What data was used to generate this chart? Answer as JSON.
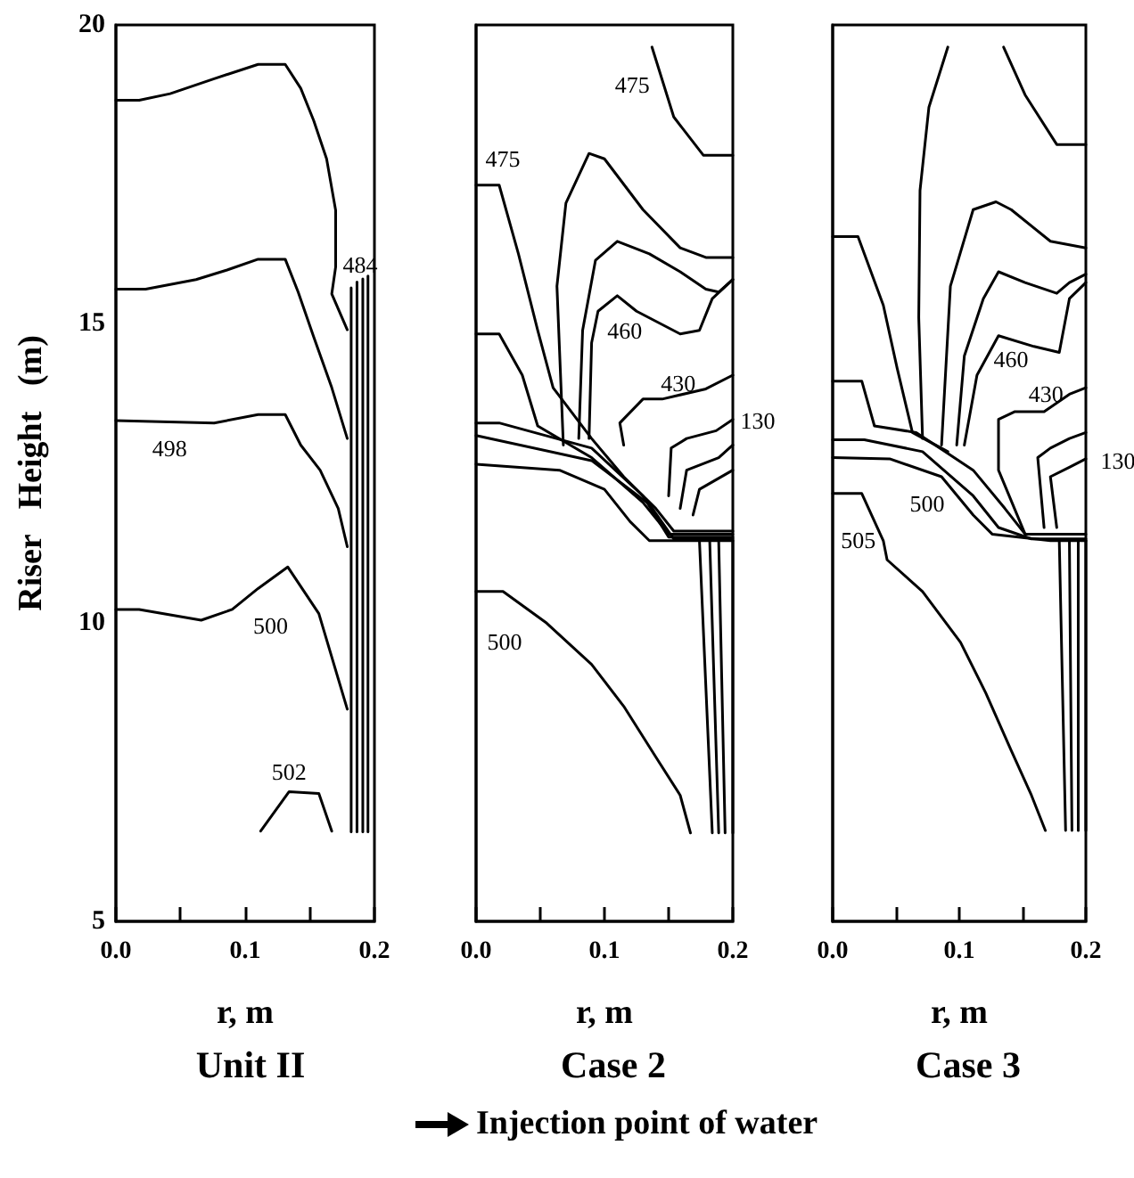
{
  "chart_data": [
    {
      "type": "line",
      "title": "Unit II",
      "xlabel": "r, m",
      "ylabel": "Riser   Height   (m)",
      "xlim": [
        0,
        0.2
      ],
      "ylim": [
        5,
        20
      ],
      "xticks": [
        {
          "value": 0,
          "label": "0.0"
        },
        {
          "value": 0.05,
          "label": null
        },
        {
          "value": 0.1,
          "label": "0.1"
        },
        {
          "value": 0.15,
          "label": null
        },
        {
          "value": 0.2,
          "label": "0.2"
        }
      ],
      "yticks": [
        5,
        10,
        15,
        20
      ],
      "marker": "none",
      "line_style": "solid",
      "series": [
        {
          "color": "#000000",
          "x": [
            0,
            0.018,
            0.042,
            0.076,
            0.11,
            0.131,
            0.143,
            0.153,
            0.163,
            0.17,
            0.17,
            0.167,
            0.179
          ],
          "values": [
            18.74,
            18.74,
            18.85,
            19.1,
            19.34,
            19.34,
            18.94,
            18.4,
            17.76,
            16.9,
            15.95,
            15.5,
            14.9
          ]
        },
        {
          "color": "#000000",
          "x": [
            0,
            0.023,
            0.062,
            0.086,
            0.11,
            0.131,
            0.141,
            0.153,
            0.167,
            0.179
          ],
          "values": [
            15.58,
            15.58,
            15.74,
            15.9,
            16.08,
            16.08,
            15.53,
            14.78,
            13.93,
            13.08
          ]
        },
        {
          "name": "498",
          "color": "#000000",
          "x": [
            0,
            0.076,
            0.11,
            0.131,
            0.143,
            0.158,
            0.172,
            0.179
          ],
          "values": [
            13.38,
            13.34,
            13.48,
            13.48,
            12.97,
            12.55,
            11.91,
            11.27
          ]
        },
        {
          "name": "500",
          "color": "#000000",
          "x": [
            0,
            0.018,
            0.066,
            0.09,
            0.11,
            0.133,
            0.157,
            0.179
          ],
          "values": [
            10.22,
            10.22,
            10.04,
            10.22,
            10.57,
            10.93,
            10.15,
            8.55
          ]
        },
        {
          "name": "502",
          "color": "#000000",
          "x": [
            0.112,
            0.134,
            0.157,
            0.167
          ],
          "values": [
            6.51,
            7.17,
            7.14,
            6.51
          ]
        },
        {
          "name": "484",
          "color": "#000000",
          "x": [
            0.182,
            0.182
          ],
          "values": [
            6.5,
            15.6
          ]
        },
        {
          "color": "#000000",
          "x": [
            0.1865,
            0.1865
          ],
          "values": [
            6.5,
            15.7
          ]
        },
        {
          "color": "#000000",
          "x": [
            0.191,
            0.191
          ],
          "values": [
            6.5,
            15.75
          ]
        },
        {
          "color": "#000000",
          "x": [
            0.195,
            0.195
          ],
          "values": [
            6.5,
            15.8
          ]
        }
      ]
    },
    {
      "type": "line",
      "title": "Case 2",
      "xlabel": "r, m",
      "xlim": [
        0,
        0.2
      ],
      "ylim": [
        5,
        20
      ],
      "tick_labels": "x",
      "xticks": [
        {
          "value": 0,
          "label": "0.0"
        },
        {
          "value": 0.05,
          "label": null
        },
        {
          "value": 0.1,
          "label": "0.1"
        },
        {
          "value": 0.15,
          "label": null
        },
        {
          "value": 0.2,
          "label": "0.2"
        }
      ],
      "yticks": [
        5,
        10,
        15,
        20
      ],
      "marker": "none",
      "line_style": "solid",
      "annotations": [
        "Injection point of water"
      ],
      "series": [
        {
          "name": "475",
          "color": "#000000",
          "x": [
            0.137,
            0.154,
            0.177,
            0.2
          ],
          "values": [
            19.63,
            18.46,
            17.82,
            17.82
          ]
        },
        {
          "name": "475",
          "color": "#000000",
          "x": [
            0,
            0.018,
            0.033,
            0.048,
            0.06,
            0.09,
            0.115,
            0.14,
            0.154,
            0.2
          ],
          "values": [
            17.32,
            17.32,
            16.17,
            14.89,
            13.93,
            13.08,
            12.44,
            11.91,
            11.53,
            11.53
          ]
        },
        {
          "color": "#000000",
          "x": [
            0.068,
            0.063,
            0.07,
            0.088,
            0.1,
            0.13,
            0.159,
            0.179,
            0.2
          ],
          "values": [
            12.97,
            15.63,
            17.02,
            17.85,
            17.76,
            16.91,
            16.27,
            16.11,
            16.11
          ]
        },
        {
          "color": "#000000",
          "x": [
            0.08,
            0.083,
            0.093,
            0.11,
            0.135,
            0.159,
            0.179,
            0.189,
            0.2
          ],
          "values": [
            13.08,
            14.89,
            16.06,
            16.38,
            16.17,
            15.87,
            15.58,
            15.53,
            15.74
          ]
        },
        {
          "name": "460",
          "color": "#000000",
          "x": [
            0.088,
            0.09,
            0.095,
            0.11,
            0.125,
            0.159,
            0.174,
            0.184,
            0.2
          ],
          "values": [
            13.08,
            14.68,
            15.21,
            15.47,
            15.21,
            14.83,
            14.89,
            15.42,
            15.74
          ]
        },
        {
          "name": "430",
          "color": "#000000",
          "x": [
            0.115,
            0.112,
            0.13,
            0.145,
            0.179,
            0.2
          ],
          "values": [
            12.97,
            13.34,
            13.74,
            13.74,
            13.91,
            14.14
          ]
        },
        {
          "color": "#000000",
          "x": [
            0.15,
            0.152,
            0.164,
            0.187,
            0.2
          ],
          "values": [
            12.12,
            12.92,
            13.08,
            13.21,
            13.4
          ]
        },
        {
          "color": "#000000",
          "x": [
            0.159,
            0.164,
            0.189,
            0.2
          ],
          "values": [
            11.91,
            12.55,
            12.76,
            12.97
          ]
        },
        {
          "name": "130",
          "color": "#000000",
          "x": [
            0.169,
            0.174,
            0.2
          ],
          "values": [
            11.8,
            12.23,
            12.55
          ]
        },
        {
          "color": "#000000",
          "x": [
            0,
            0.018,
            0.036,
            0.048,
            0.09,
            0.13,
            0.15,
            0.2
          ],
          "values": [
            14.83,
            14.83,
            14.14,
            13.29,
            12.76,
            12.01,
            11.48,
            11.48
          ]
        },
        {
          "color": "#000000",
          "x": [
            0,
            0.018,
            0.09,
            0.13,
            0.15,
            0.2
          ],
          "values": [
            13.34,
            13.34,
            12.92,
            12.12,
            11.43,
            11.43
          ]
        },
        {
          "color": "#000000",
          "x": [
            0,
            0.09,
            0.135,
            0.154,
            0.2
          ],
          "values": [
            13.13,
            12.71,
            11.98,
            11.4,
            11.4
          ]
        },
        {
          "color": "#000000",
          "x": [
            0,
            0.065,
            0.1,
            0.12,
            0.135,
            0.2
          ],
          "values": [
            12.65,
            12.55,
            12.23,
            11.69,
            11.37,
            11.37
          ]
        },
        {
          "color": "#000000",
          "x": [
            0.174,
            0.184
          ],
          "values": [
            11.37,
            6.48
          ]
        },
        {
          "color": "#000000",
          "x": [
            0.182,
            0.189
          ],
          "values": [
            11.37,
            6.48
          ]
        },
        {
          "color": "#000000",
          "x": [
            0.189,
            0.194
          ],
          "values": [
            11.37,
            6.48
          ]
        },
        {
          "color": "#000000",
          "x": [
            0.2,
            0.2
          ],
          "values": [
            11.37,
            6.48
          ]
        },
        {
          "name": "500",
          "color": "#000000",
          "x": [
            0,
            0.021,
            0.055,
            0.09,
            0.115,
            0.14,
            0.159,
            0.167
          ],
          "values": [
            10.52,
            10.52,
            9.99,
            9.3,
            8.6,
            7.75,
            7.11,
            6.48
          ]
        }
      ]
    },
    {
      "type": "line",
      "title": "Case 3",
      "xlabel": "r, m",
      "xlim": [
        0,
        0.2
      ],
      "ylim": [
        5,
        20
      ],
      "tick_labels": "x",
      "xticks": [
        {
          "value": 0,
          "label": "0.0"
        },
        {
          "value": 0.05,
          "label": null
        },
        {
          "value": 0.1,
          "label": "0.1"
        },
        {
          "value": 0.15,
          "label": null
        },
        {
          "value": 0.2,
          "label": "0.2"
        }
      ],
      "yticks": [
        5,
        10,
        15,
        20
      ],
      "marker": "none",
      "line_style": "solid",
      "series": [
        {
          "color": "#000000",
          "x": [
            0.091,
            0.076,
            0.069,
            0.068,
            0.071
          ],
          "values": [
            19.63,
            18.62,
            17.23,
            15.1,
            13.08
          ]
        },
        {
          "color": "#000000",
          "x": [
            0.135,
            0.152,
            0.177,
            0.2
          ],
          "values": [
            19.63,
            18.83,
            18.0,
            18.0
          ]
        },
        {
          "color": "#000000",
          "x": [
            0,
            0.02,
            0.04,
            0.051,
            0.063,
            0.091
          ],
          "values": [
            16.46,
            16.46,
            15.31,
            14.25,
            13.18,
            12.86
          ]
        },
        {
          "color": "#000000",
          "x": [
            0.086,
            0.093,
            0.111,
            0.129,
            0.141,
            0.172,
            0.2
          ],
          "values": [
            12.97,
            15.63,
            16.91,
            17.04,
            16.91,
            16.38,
            16.27
          ]
        },
        {
          "color": "#000000",
          "x": [
            0.098,
            0.104,
            0.119,
            0.131,
            0.152,
            0.177,
            0.187,
            0.2
          ],
          "values": [
            12.97,
            14.46,
            15.42,
            15.87,
            15.69,
            15.51,
            15.69,
            15.83
          ]
        },
        {
          "name": "460",
          "color": "#000000",
          "x": [
            0.104,
            0.114,
            0.131,
            0.159,
            0.179,
            0.187,
            0.2
          ],
          "values": [
            12.97,
            14.14,
            14.8,
            14.62,
            14.52,
            15.42,
            15.69
          ]
        },
        {
          "name": "430",
          "color": "#000000",
          "x": [
            0.152,
            0.131,
            0.131,
            0.144,
            0.167,
            0.187,
            0.2
          ],
          "values": [
            11.48,
            12.55,
            13.4,
            13.53,
            13.53,
            13.82,
            13.93
          ]
        },
        {
          "color": "#000000",
          "x": [
            0.167,
            0.162,
            0.172,
            0.187,
            0.2
          ],
          "values": [
            11.59,
            12.76,
            12.92,
            13.08,
            13.18
          ]
        },
        {
          "name": "130",
          "color": "#000000",
          "x": [
            0.177,
            0.172,
            0.187,
            0.2
          ],
          "values": [
            11.59,
            12.44,
            12.6,
            12.74
          ]
        },
        {
          "color": "#000000",
          "x": [
            0,
            0.023,
            0.033,
            0.066,
            0.111,
            0.136,
            0.152,
            0.2
          ],
          "values": [
            14.04,
            14.04,
            13.29,
            13.18,
            12.55,
            11.91,
            11.48,
            11.48
          ]
        },
        {
          "color": "#000000",
          "x": [
            0,
            0.025,
            0.071,
            0.111,
            0.131,
            0.157,
            0.2
          ],
          "values": [
            13.06,
            13.06,
            12.86,
            12.12,
            11.59,
            11.4,
            11.4
          ]
        },
        {
          "name": "500",
          "color": "#000000",
          "x": [
            0,
            0.045,
            0.086,
            0.111,
            0.126,
            0.172,
            0.2
          ],
          "values": [
            12.76,
            12.74,
            12.44,
            11.8,
            11.48,
            11.37,
            11.37
          ]
        },
        {
          "name": "505",
          "color": "#000000",
          "x": [
            0,
            0.023,
            0.04,
            0.043,
            0.071,
            0.101,
            0.121,
            0.141,
            0.157,
            0.168
          ],
          "values": [
            12.16,
            12.16,
            11.37,
            11.05,
            10.52,
            9.67,
            8.82,
            7.86,
            7.11,
            6.52
          ]
        },
        {
          "color": "#000000",
          "x": [
            0.179,
            0.184
          ],
          "values": [
            11.37,
            6.52
          ]
        },
        {
          "color": "#000000",
          "x": [
            0.187,
            0.189
          ],
          "values": [
            11.37,
            6.52
          ]
        },
        {
          "color": "#000000",
          "x": [
            0.194,
            0.194
          ],
          "values": [
            11.37,
            6.52
          ]
        },
        {
          "color": "#000000",
          "x": [
            0.2,
            0.2
          ],
          "values": [
            11.37,
            6.52
          ]
        }
      ]
    }
  ]
}
